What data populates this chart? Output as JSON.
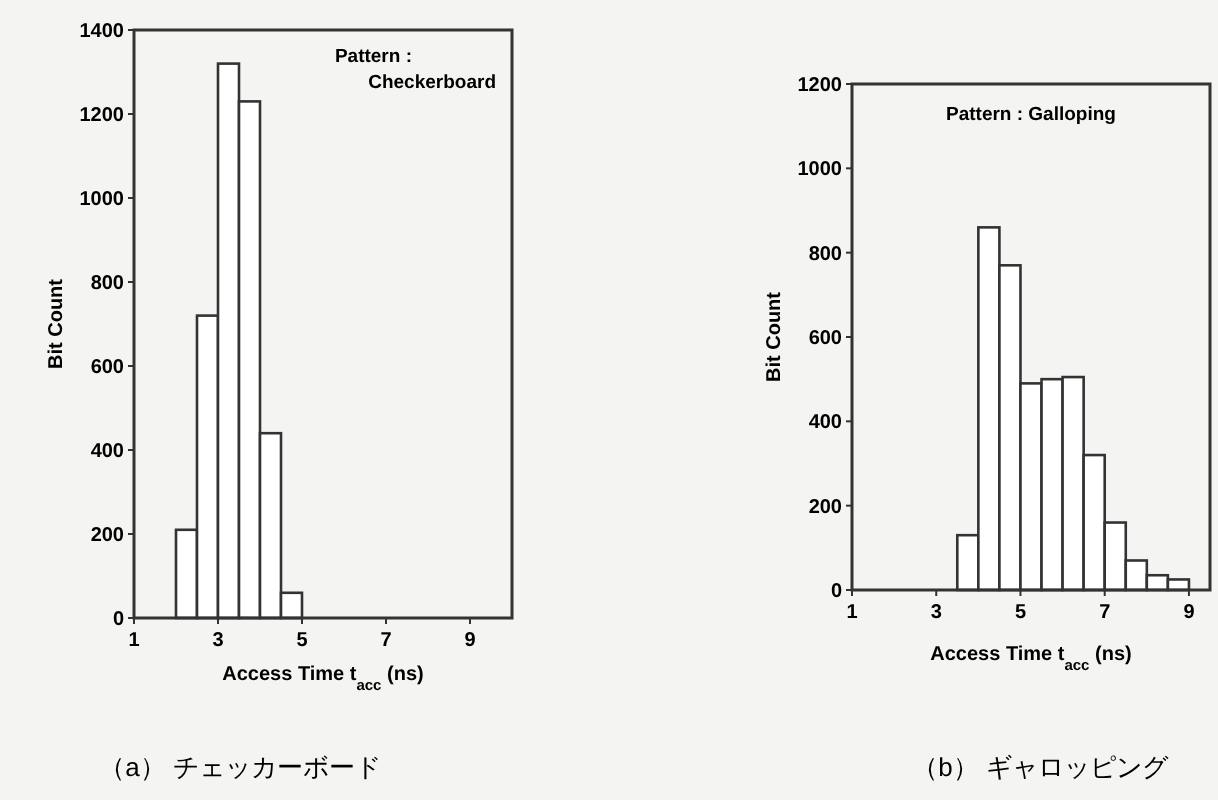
{
  "chart_data": [
    {
      "type": "histogram",
      "title": "（a） チェッカーボード",
      "xlabel": "Access Time  t$_{acc}$ (ns)",
      "ylabel": "Bit Count",
      "annotations": [
        "Pattern : Checkerboard"
      ],
      "bins": [
        2,
        2.5,
        3,
        3.5,
        4,
        4.5,
        5
      ],
      "values": [
        210,
        720,
        1320,
        1230,
        440,
        60
      ],
      "color": "#ffffff",
      "xlim": [
        1,
        10
      ],
      "xticks": [
        1,
        3,
        5,
        7,
        9
      ],
      "ylim": [
        0,
        1400
      ],
      "yticks": [
        0,
        200,
        400,
        600,
        800,
        1000,
        1200,
        1400
      ]
    },
    {
      "type": "histogram",
      "title": "（b） ギャロッピング",
      "xlabel": "Access Time  t$_{acc}$ (ns)",
      "ylabel": "Bit Count",
      "annotations": [
        "Pattern : Galloping"
      ],
      "bins": [
        3.5,
        4,
        4.5,
        5,
        5.5,
        6,
        6.5,
        7,
        7.5,
        8,
        8.5,
        9
      ],
      "values": [
        130,
        860,
        770,
        490,
        500,
        505,
        320,
        160,
        70,
        35,
        25
      ],
      "color": "#ffffff",
      "xlim": [
        1,
        9.5
      ],
      "xticks": [
        1,
        3,
        5,
        7,
        9
      ],
      "ylim": [
        0,
        1200
      ],
      "yticks": [
        0,
        200,
        400,
        600,
        800,
        1000,
        1200
      ]
    }
  ]
}
